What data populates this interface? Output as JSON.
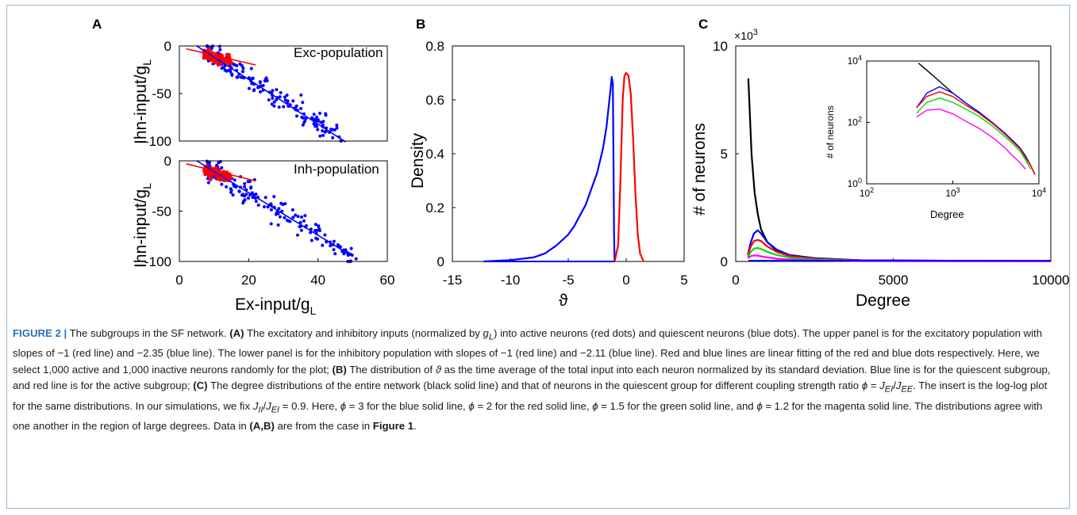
{
  "figure": {
    "caption_label": "FIGURE 2 |",
    "caption_html": " The subgroups in the SF network. <b>(A)</b> The excitatory and inhibitory inputs (normalized by <i>g<sub>L</sub></i>) into active neurons (red dots) and quiescent neurons (blue dots). The upper panel is for the excitatory population with slopes of −1 (red line) and −2.35 (blue line). The lower panel is for the inhibitory population with slopes of −1 (red line) and −2.11 (blue line). Red and blue lines are linear fitting of the red and blue dots respectively. Here, we select 1,000 active and 1,000 inactive neurons randomly for the plot; <b>(B)</b> The distribution of <i>ϑ</i> as the time average of the total input into each neuron normalized by its standard deviation. Blue line is for the quiescent subgroup, and red line is for the active subgroup; <b>(C)</b> The degree distributions of the entire network (black solid line) and that of neurons in the quiescent group for different coupling strength ratio <i>ϕ</i> = <i>J<sub>EI</sub></i>/<i>J<sub>EE</sub></i>. The insert is the log-log plot for the same distributions. In our simulations, we fix <i>J<sub>II</sub></i>/<i>J<sub>EI</sub></i> = 0.9. Here, <i>ϕ</i> = 3 for the blue solid line, <i>ϕ</i> = 2 for the red solid line, <i>ϕ</i> = 1.5 for the green solid line, and <i>ϕ</i> = 1.2 for the magenta solid line. The distributions agree with one another in the region of large degrees. Data in <b>(A,B)</b> are from the case in <b>Figure 1</b>."
  },
  "panels": {
    "A": {
      "letter": "A",
      "top_title": "Exc-population",
      "bottom_title": "Inh-population",
      "ylabel": "Ihn-input/g",
      "xlabel": "Ex-input/g",
      "label_sub": "L"
    },
    "B": {
      "letter": "B",
      "ylabel": "Density",
      "xlabel": "ϑ"
    },
    "C": {
      "letter": "C",
      "ylabel": "# of neurons",
      "xlabel": "Degree",
      "exponent_label": "×10",
      "exponent_sup": "3",
      "inset_ylabel": "# of neurons",
      "inset_xlabel": "Degree"
    }
  },
  "chart_data": [
    {
      "type": "scatter",
      "panel": "A-top",
      "title": "Exc-population",
      "xlim": [
        0,
        60
      ],
      "ylim": [
        -100,
        0
      ],
      "xticks": [],
      "yticks": [
        0,
        -50,
        -100
      ],
      "series": [
        {
          "color": "#ff0000",
          "kind": "dots",
          "x_range": [
            7,
            15
          ],
          "fit_slope": -1,
          "fit_intercept": -2,
          "noise": 2.5
        },
        {
          "color": "#0000ff",
          "kind": "dots",
          "x_range": [
            8,
            47
          ],
          "fit_slope": -2.35,
          "fit_intercept": 13,
          "noise": 6
        }
      ],
      "fit_lines": [
        {
          "color": "#ff0000",
          "x": [
            2,
            22
          ],
          "y": [
            -3,
            -20
          ]
        },
        {
          "color": "#0000ff",
          "x": [
            5,
            48
          ],
          "y": [
            0,
            -101
          ]
        }
      ]
    },
    {
      "type": "scatter",
      "panel": "A-bottom",
      "title": "Inh-population",
      "xlim": [
        0,
        60
      ],
      "ylim": [
        -100,
        0
      ],
      "xticks": [
        0,
        20,
        40,
        60
      ],
      "yticks": [
        0,
        -50,
        -100
      ],
      "series": [
        {
          "color": "#ff0000",
          "kind": "dots",
          "x_range": [
            7,
            15
          ],
          "fit_slope": -1,
          "fit_intercept": -2,
          "noise": 2.5
        },
        {
          "color": "#0000ff",
          "kind": "dots",
          "x_range": [
            8,
            51
          ],
          "fit_slope": -2.11,
          "fit_intercept": 10,
          "noise": 6
        }
      ],
      "fit_lines": [
        {
          "color": "#ff0000",
          "x": [
            2,
            22
          ],
          "y": [
            -3,
            -20
          ]
        },
        {
          "color": "#0000ff",
          "x": [
            5,
            50
          ],
          "y": [
            0,
            -95
          ]
        }
      ]
    },
    {
      "type": "line",
      "panel": "B",
      "xlim": [
        -15,
        5
      ],
      "ylim": [
        0,
        0.8
      ],
      "xticks": [
        -15,
        -10,
        -5,
        0,
        5
      ],
      "yticks": [
        0,
        0.2,
        0.4,
        0.6,
        0.8
      ],
      "xlabel": "ϑ",
      "ylabel": "Density",
      "series": [
        {
          "color": "#0000ff",
          "x": [
            -12.3,
            -10,
            -8,
            -7,
            -6,
            -5,
            -4.5,
            -4,
            -3.5,
            -3,
            -2.5,
            -2,
            -1.7,
            -1.5,
            -1.35,
            -1.25,
            -1.15,
            -1.1,
            -1.05,
            -1.0
          ],
          "y": [
            0,
            0.005,
            0.015,
            0.03,
            0.06,
            0.1,
            0.13,
            0.17,
            0.21,
            0.27,
            0.33,
            0.42,
            0.5,
            0.58,
            0.64,
            0.685,
            0.66,
            0.4,
            0.1,
            0
          ]
        },
        {
          "color": "#ff0000",
          "x": [
            -1.0,
            -0.7,
            -0.5,
            -0.3,
            -0.15,
            0,
            0.2,
            0.4,
            0.6,
            0.8,
            1.0,
            1.2,
            1.5
          ],
          "y": [
            0,
            0.06,
            0.3,
            0.6,
            0.69,
            0.7,
            0.69,
            0.62,
            0.45,
            0.25,
            0.1,
            0.03,
            0
          ]
        }
      ]
    },
    {
      "type": "line",
      "panel": "C",
      "xlim": [
        0,
        10000
      ],
      "ylim": [
        0,
        10
      ],
      "xticks": [
        0,
        5000,
        10000
      ],
      "yticks": [
        0,
        5,
        10
      ],
      "xlabel": "Degree",
      "ylabel": "# of neurons",
      "series": [
        {
          "color": "#000000",
          "x": [
            400,
            500,
            600,
            700,
            800,
            1000,
            1300,
            1700,
            2500,
            4000,
            10000
          ],
          "y": [
            8.5,
            5.0,
            3.2,
            2.2,
            1.5,
            0.9,
            0.5,
            0.3,
            0.15,
            0.05,
            0.01
          ]
        },
        {
          "color": "#0000ff",
          "x": [
            380,
            480,
            580,
            700,
            800,
            1000,
            1300,
            1700,
            2500,
            4000,
            10000
          ],
          "y": [
            0.3,
            0.9,
            1.3,
            1.45,
            1.3,
            0.9,
            0.55,
            0.3,
            0.15,
            0.05,
            0.01
          ]
        },
        {
          "color": "#ff0000",
          "x": [
            380,
            480,
            580,
            700,
            800,
            1000,
            1300,
            1700,
            2500,
            4000,
            10000
          ],
          "y": [
            0.3,
            0.7,
            0.95,
            1.0,
            0.95,
            0.7,
            0.45,
            0.25,
            0.12,
            0.04,
            0.01
          ]
        },
        {
          "color": "#00dd00",
          "x": [
            380,
            480,
            580,
            700,
            800,
            1000,
            1300,
            1700,
            2500,
            4000,
            10000
          ],
          "y": [
            0.2,
            0.45,
            0.6,
            0.62,
            0.58,
            0.45,
            0.3,
            0.18,
            0.09,
            0.03,
            0.01
          ]
        },
        {
          "color": "#ff00ff",
          "x": [
            380,
            480,
            580,
            700,
            800,
            1000,
            1300,
            1700,
            2500,
            4000,
            10000
          ],
          "y": [
            0.15,
            0.25,
            0.28,
            0.27,
            0.24,
            0.19,
            0.13,
            0.09,
            0.05,
            0.02,
            0.005
          ]
        }
      ]
    },
    {
      "type": "line",
      "panel": "C-inset",
      "xscale": "log",
      "yscale": "log",
      "xlim": [
        100,
        10000
      ],
      "ylim": [
        1,
        10000
      ],
      "xticks": [
        100,
        1000,
        10000
      ],
      "yticks": [
        1,
        100,
        10000
      ],
      "xlabel": "Degree",
      "ylabel": "# of neurons",
      "series": [
        {
          "color": "#000000",
          "x": [
            400,
            500,
            700,
            1000,
            1500,
            2000,
            3000,
            4000,
            5000,
            6000,
            7000,
            8000,
            9000
          ],
          "y": [
            8500,
            5000,
            2200,
            900,
            380,
            220,
            90,
            45,
            25,
            15,
            8,
            4,
            2
          ]
        },
        {
          "color": "#0000ff",
          "x": [
            380,
            500,
            700,
            1000,
            1500,
            2000,
            3000,
            4000,
            5000,
            6000,
            7000,
            8000,
            9000
          ],
          "y": [
            300,
            900,
            1450,
            900,
            380,
            220,
            90,
            45,
            25,
            15,
            8,
            4,
            2
          ]
        },
        {
          "color": "#ff0000",
          "x": [
            380,
            500,
            700,
            1000,
            1500,
            2000,
            3000,
            4000,
            5000,
            6000,
            7000,
            8000,
            9000
          ],
          "y": [
            300,
            700,
            1000,
            700,
            330,
            200,
            85,
            42,
            23,
            14,
            7,
            4,
            2
          ]
        },
        {
          "color": "#00dd00",
          "x": [
            380,
            500,
            700,
            1000,
            1500,
            2000,
            3000,
            4000,
            5000,
            6000,
            7000,
            8000
          ],
          "y": [
            200,
            450,
            620,
            450,
            250,
            160,
            70,
            35,
            20,
            12,
            6,
            3
          ]
        },
        {
          "color": "#ff00ff",
          "x": [
            380,
            500,
            700,
            1000,
            1500,
            2000,
            3000,
            4000,
            5000,
            6000,
            7000
          ],
          "y": [
            150,
            250,
            270,
            190,
            100,
            65,
            30,
            15,
            8,
            5,
            3
          ]
        }
      ]
    }
  ]
}
